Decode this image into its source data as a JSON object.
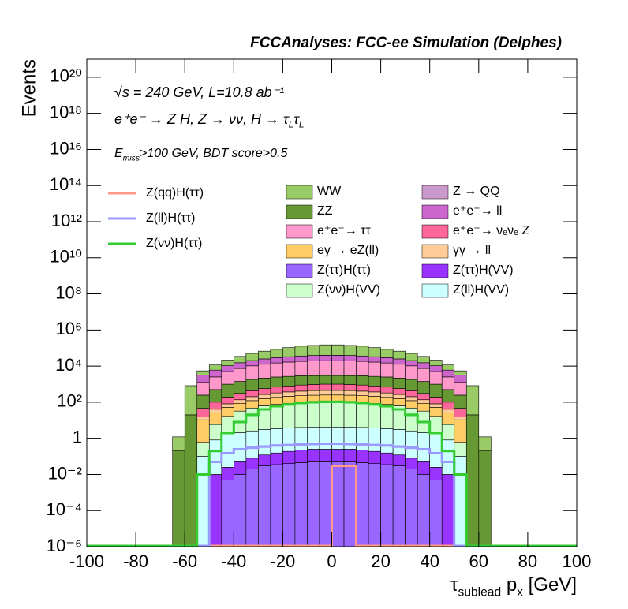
{
  "chart_data": {
    "type": "histogram",
    "title": "FCCAnalyses: FCC-ee Simulation (Delphes)",
    "annotations": [
      [
        "√s = 240 GeV, L=10.8 ab⁻¹"
      ],
      [
        "e⁺e⁻ → Z H, Z → νν, H → τ",
        "L",
        "τ",
        "L"
      ],
      [
        "E",
        "miss",
        ">100 GeV, BDT score>0.5"
      ]
    ],
    "xlabel": [
      "τ",
      "sublead",
      " p",
      "x",
      " [GeV]"
    ],
    "ylabel": "Events",
    "log_y": true,
    "xlim": [
      -100,
      100
    ],
    "ylim": [
      1e-06,
      1e+21
    ],
    "xticks": [
      -100,
      -80,
      -60,
      -40,
      -20,
      0,
      20,
      40,
      60,
      80,
      100
    ],
    "yticks": [
      {
        "value": 1e-06,
        "label": "10⁻⁶"
      },
      {
        "value": 0.0001,
        "label": "10⁻⁴"
      },
      {
        "value": 0.01,
        "label": "10⁻²"
      },
      1,
      {
        "value": 100,
        "label": "10²"
      },
      {
        "value": 10000,
        "label": "10⁴"
      },
      {
        "value": 1000000,
        "label": "10⁶"
      },
      {
        "value": 100000000.0,
        "label": "10⁸"
      },
      {
        "value": 10000000000.0,
        "label": "10¹⁰"
      },
      {
        "value": 1000000000000.0,
        "label": "10¹²"
      },
      {
        "value": 100000000000000.0,
        "label": "10¹⁴"
      },
      {
        "value": 1e+16,
        "label": "10¹⁶"
      },
      {
        "value": 1e+18,
        "label": "10¹⁸"
      },
      {
        "value": 1e+20,
        "label": "10²⁰"
      }
    ],
    "bins": [
      -65,
      -60,
      -55,
      -50,
      -45,
      -40,
      -35,
      -30,
      -25,
      -20,
      -15,
      -10,
      -5,
      0,
      5,
      10,
      15,
      20,
      25,
      30,
      35,
      40,
      45,
      50,
      55,
      60,
      65
    ],
    "series": [
      {
        "name": "Z(ττ)H(ττ)",
        "color": "#9966ff",
        "style": "stack",
        "values": [
          0,
          0,
          0,
          0,
          0.005,
          0.01,
          0.02,
          0.03,
          0.035,
          0.04,
          0.045,
          0.05,
          0.05,
          0.05,
          0.05,
          0.045,
          0.04,
          0.035,
          0.03,
          0.02,
          0.01,
          0.005,
          0,
          0,
          0,
          0
        ]
      },
      {
        "name": "Z(ττ)H(VV)",
        "color": "#9933ff",
        "style": "stack",
        "values": [
          0,
          0,
          0,
          0.01,
          0.02,
          0.04,
          0.06,
          0.09,
          0.12,
          0.15,
          0.18,
          0.2,
          0.2,
          0.2,
          0.2,
          0.18,
          0.15,
          0.12,
          0.09,
          0.06,
          0.04,
          0.02,
          0.01,
          0,
          0,
          0
        ]
      },
      {
        "name": "Z(ll)H(VV)",
        "color": "#ccffff",
        "style": "stack",
        "values": [
          0,
          0,
          0.1,
          0.8,
          1.5,
          2,
          2.5,
          3,
          3.3,
          3.6,
          3.8,
          4,
          4,
          4,
          4,
          3.8,
          3.6,
          3.3,
          3,
          2.5,
          2,
          1.5,
          0.8,
          0.1,
          0,
          0
        ]
      },
      {
        "name": "Z(νν)H(VV)",
        "color": "#ccffcc",
        "style": "stack",
        "values": [
          0,
          0,
          0.5,
          5,
          15,
          30,
          45,
          60,
          72,
          82,
          90,
          94,
          96,
          96,
          94,
          90,
          82,
          72,
          60,
          45,
          30,
          15,
          5,
          0.5,
          0,
          0
        ]
      },
      {
        "name": "eγ → eZ(ll)",
        "color": "#ffcc66",
        "style": "stack",
        "values": [
          0,
          0,
          10,
          20,
          35,
          55,
          75,
          95,
          110,
          125,
          135,
          145,
          150,
          150,
          145,
          135,
          125,
          110,
          95,
          75,
          55,
          35,
          20,
          10,
          0,
          0
        ]
      },
      {
        "name": "γγ → ll",
        "color": "#ffcc99",
        "style": "stack",
        "values": [
          0,
          0,
          5,
          15,
          30,
          50,
          80,
          110,
          140,
          160,
          180,
          195,
          200,
          200,
          195,
          180,
          160,
          140,
          110,
          80,
          50,
          30,
          15,
          5,
          0,
          0
        ]
      },
      {
        "name": "e⁺e⁻→ νₑνₑ Z",
        "color": "#ff6699",
        "style": "stack",
        "values": [
          0,
          0,
          30,
          60,
          110,
          170,
          230,
          300,
          360,
          420,
          480,
          520,
          550,
          550,
          520,
          480,
          420,
          360,
          300,
          230,
          170,
          110,
          60,
          30,
          0,
          0
        ]
      },
      {
        "name": "ZZ",
        "color": "#669933",
        "style": "stack",
        "values": [
          0.2,
          20,
          200,
          400,
          800,
          1100,
          1400,
          1600,
          1800,
          1900,
          2000,
          2000,
          2000,
          2000,
          2000,
          2000,
          1900,
          1800,
          1600,
          1400,
          1100,
          800,
          400,
          200,
          20,
          0.2
        ]
      },
      {
        "name": "e⁺e⁻→ ττ",
        "color": "#ff99cc",
        "style": "stack",
        "values": [
          0,
          0,
          1000,
          2000,
          4000,
          6000,
          8500,
          10500,
          12500,
          14000,
          15500,
          16500,
          17000,
          17000,
          16500,
          15500,
          14000,
          12500,
          10500,
          8500,
          6000,
          4000,
          2000,
          1000,
          0,
          0
        ]
      },
      {
        "name": "e⁺e⁻→ ll",
        "color": "#cc66cc",
        "style": "stack",
        "values": [
          0,
          0,
          2000,
          3500,
          5500,
          8000,
          10000,
          12500,
          14500,
          16500,
          18000,
          19500,
          20000,
          20000,
          19500,
          18000,
          16500,
          14500,
          12500,
          10000,
          8000,
          5500,
          3500,
          2000,
          0,
          0
        ]
      },
      {
        "name": "Z → QQ",
        "color": "#cc99cc",
        "style": "stack",
        "values": [
          0,
          0,
          0,
          0,
          0,
          0,
          0,
          0,
          0,
          0,
          0,
          0,
          40,
          40,
          0,
          0,
          0,
          0,
          0,
          0,
          0,
          0,
          0,
          0,
          0,
          0
        ]
      },
      {
        "name": "WW",
        "color": "#99cc66",
        "style": "stack",
        "values": [
          1,
          800,
          2200,
          5500,
          11000,
          19000,
          30000,
          42000,
          55000,
          72000,
          90000,
          100000,
          110000,
          110000,
          100000,
          90000,
          72000,
          55000,
          42000,
          30000,
          19000,
          11000,
          5500,
          2200,
          800,
          1
        ]
      },
      {
        "name": "Z(qq)H(ττ)",
        "color": "#ff9988",
        "style": "line",
        "values": [
          0,
          0,
          0,
          0,
          0,
          0,
          0,
          0,
          0,
          0,
          0,
          0,
          0,
          0.03,
          0.03,
          0,
          0,
          0,
          0,
          0,
          0,
          0,
          0,
          0,
          0,
          0
        ]
      },
      {
        "name": "Z(ll)H(ττ)",
        "color": "#9999ff",
        "style": "line",
        "values": [
          0,
          0,
          0,
          0.05,
          0.15,
          0.25,
          0.3,
          0.35,
          0.4,
          0.42,
          0.45,
          0.48,
          0.5,
          0.5,
          0.48,
          0.45,
          0.42,
          0.4,
          0.35,
          0.3,
          0.25,
          0.15,
          0.05,
          0,
          0,
          0
        ]
      },
      {
        "name": "Z(νν)H(ττ)",
        "color": "#33cc33",
        "style": "line",
        "values": [
          0,
          0,
          0.01,
          0.2,
          2,
          8,
          20,
          40,
          60,
          75,
          90,
          100,
          105,
          105,
          100,
          90,
          75,
          60,
          40,
          20,
          8,
          2,
          0.2,
          0.01,
          0,
          0
        ]
      }
    ]
  }
}
